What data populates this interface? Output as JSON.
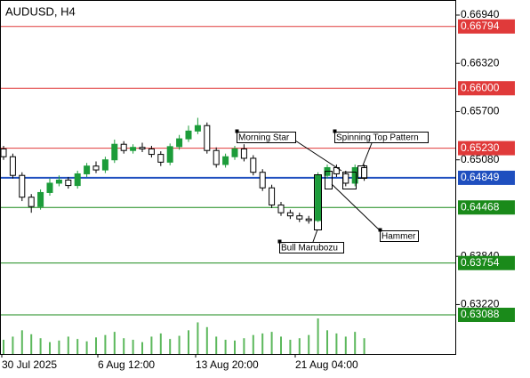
{
  "chart_data": {
    "type": "candlestick",
    "title": "AUDUSD, H4",
    "x_tick_labels": [
      "30 Jul 2025",
      "6 Aug 12:00",
      "13 Aug 20:00",
      "21 Aug 04:00"
    ],
    "open": [
      0.6522,
      0.6512,
      0.6488,
      0.646,
      0.6448,
      0.6466,
      0.6478,
      0.6482,
      0.6475,
      0.649,
      0.65,
      0.6495,
      0.6508,
      0.6528,
      0.652,
      0.6524,
      0.6522,
      0.6515,
      0.6505,
      0.6525,
      0.6535,
      0.6545,
      0.6552,
      0.652,
      0.6502,
      0.6512,
      0.6522,
      0.651,
      0.6492,
      0.6472,
      0.645,
      0.644,
      0.6436,
      0.6432,
      0.643,
      0.6488,
      0.6498,
      0.649,
      0.6478,
      0.6498
    ],
    "high": [
      0.6526,
      0.6516,
      0.6492,
      0.6464,
      0.647,
      0.6484,
      0.6488,
      0.6486,
      0.6494,
      0.6504,
      0.6506,
      0.6512,
      0.6534,
      0.6532,
      0.6528,
      0.653,
      0.6526,
      0.6519,
      0.6529,
      0.654,
      0.6552,
      0.6562,
      0.6556,
      0.6524,
      0.6516,
      0.6526,
      0.6528,
      0.6514,
      0.6496,
      0.6476,
      0.6454,
      0.6444,
      0.644,
      0.6436,
      0.6492,
      0.6502,
      0.6502,
      0.6494,
      0.6502,
      0.6502
    ],
    "low": [
      0.6508,
      0.6484,
      0.6455,
      0.644,
      0.6444,
      0.6462,
      0.6474,
      0.6471,
      0.6471,
      0.6486,
      0.6491,
      0.6491,
      0.6504,
      0.6516,
      0.6516,
      0.6518,
      0.6511,
      0.65,
      0.6501,
      0.6521,
      0.6531,
      0.6541,
      0.6516,
      0.6498,
      0.6498,
      0.6508,
      0.6506,
      0.6488,
      0.6468,
      0.6446,
      0.6436,
      0.6432,
      0.6428,
      0.6426,
      0.6428,
      0.6484,
      0.6486,
      0.6474,
      0.6474,
      0.6481
    ],
    "close": [
      0.6512,
      0.6488,
      0.646,
      0.6448,
      0.6466,
      0.6478,
      0.6482,
      0.6475,
      0.649,
      0.65,
      0.6495,
      0.6508,
      0.6528,
      0.652,
      0.6524,
      0.6522,
      0.6515,
      0.6505,
      0.6525,
      0.6535,
      0.6545,
      0.6552,
      0.652,
      0.6502,
      0.6512,
      0.6522,
      0.651,
      0.6492,
      0.6472,
      0.645,
      0.644,
      0.6436,
      0.6432,
      0.643,
      0.6488,
      0.6498,
      0.649,
      0.6478,
      0.6498,
      0.6485
    ],
    "volume": [
      18,
      22,
      30,
      25,
      20,
      15,
      17,
      22,
      19,
      16,
      21,
      24,
      28,
      20,
      18,
      15,
      22,
      26,
      19,
      23,
      30,
      40,
      34,
      22,
      18,
      17,
      20,
      24,
      26,
      28,
      22,
      18,
      20,
      24,
      45,
      30,
      26,
      22,
      28,
      20
    ],
    "up_color": "#1c9c3a",
    "down_color": "#000000",
    "volume_color": "#5cb85c",
    "ylim": [
      0.62585,
      0.67134
    ],
    "yticks": [
      {
        "value": 0.6694,
        "label": "0.66940"
      },
      {
        "value": 0.6632,
        "label": "0.66320"
      },
      {
        "value": 0.657,
        "label": "0.65700"
      },
      {
        "value": 0.6508,
        "label": "0.65080"
      },
      {
        "value": 0.6384,
        "label": "0.63840"
      },
      {
        "value": 0.6322,
        "label": "0.63220"
      }
    ],
    "levels": [
      {
        "value": 0.66794,
        "label": "0.66794",
        "color": "#e03a3a"
      },
      {
        "value": 0.66,
        "label": "0.66000",
        "color": "#e03a3a"
      },
      {
        "value": 0.6523,
        "label": "0.65230",
        "color": "#e03a3a"
      },
      {
        "value": 0.64849,
        "label": "0.64849",
        "color": "#1f4fbf"
      },
      {
        "value": 0.64468,
        "label": "0.64468",
        "color": "#1a8a1a"
      },
      {
        "value": 0.63754,
        "label": "0.63754",
        "color": "#1a8a1a"
      },
      {
        "value": 0.63088,
        "label": "0.63088",
        "color": "#1a8a1a"
      }
    ],
    "annotations": [
      {
        "text": "Morning Star"
      },
      {
        "text": "Spinning Top Pattern"
      },
      {
        "text": "Bull Marubozu"
      },
      {
        "text": "Hammer"
      }
    ]
  }
}
